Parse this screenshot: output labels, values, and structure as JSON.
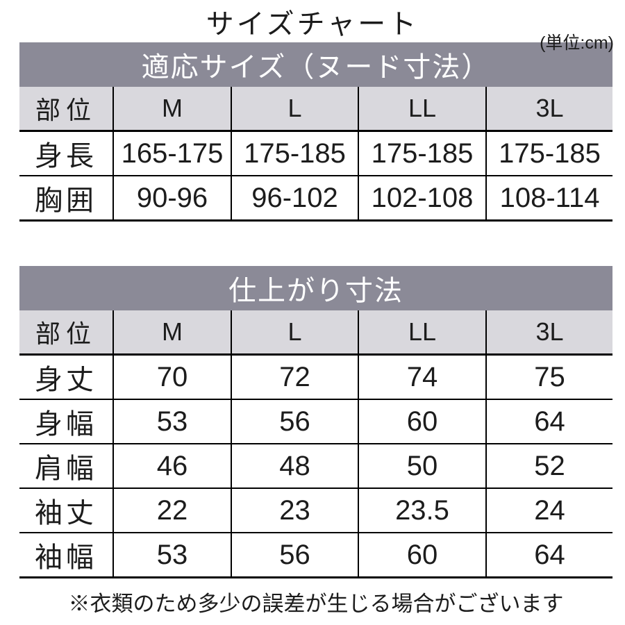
{
  "page": {
    "title": "サイズチャート",
    "unit_label": "(単位:cm)",
    "footnote": "※衣類のため多少の誤差が生じる場合がございます"
  },
  "colors": {
    "banner_bg": "#8b8a97",
    "banner_text": "#ffffff",
    "header_row_bg": "#d9d8dd",
    "grid_line": "#000000",
    "text": "#1c1c1c"
  },
  "chart_data": [
    {
      "type": "table",
      "title": "適応サイズ（ヌード寸法）",
      "columns": [
        "部位",
        "M",
        "L",
        "LL",
        "3L"
      ],
      "rows": [
        {
          "label": "身長",
          "values": [
            "165-175",
            "175-185",
            "175-185",
            "175-185"
          ]
        },
        {
          "label": "胸囲",
          "values": [
            "90-96",
            "96-102",
            "102-108",
            "108-114"
          ]
        }
      ]
    },
    {
      "type": "table",
      "title": "仕上がり寸法",
      "columns": [
        "部位",
        "M",
        "L",
        "LL",
        "3L"
      ],
      "rows": [
        {
          "label": "身丈",
          "values": [
            "70",
            "72",
            "74",
            "75"
          ]
        },
        {
          "label": "身幅",
          "values": [
            "53",
            "56",
            "60",
            "64"
          ]
        },
        {
          "label": "肩幅",
          "values": [
            "46",
            "48",
            "50",
            "52"
          ]
        },
        {
          "label": "袖丈",
          "values": [
            "22",
            "23",
            "23.5",
            "24"
          ]
        },
        {
          "label": "袖幅",
          "values": [
            "53",
            "56",
            "60",
            "64"
          ]
        }
      ]
    }
  ]
}
